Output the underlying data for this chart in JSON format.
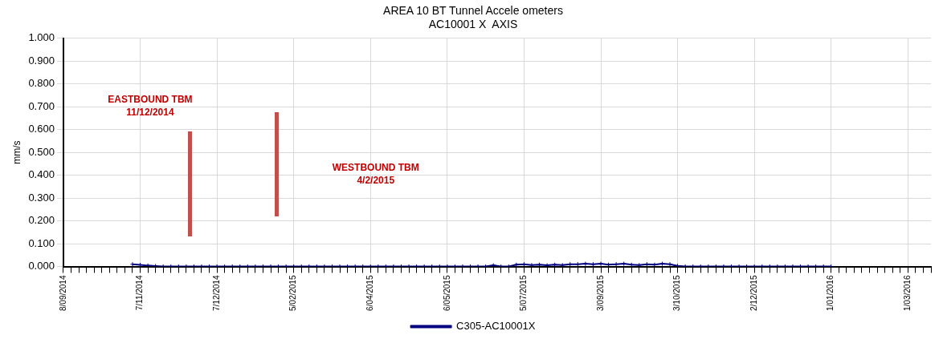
{
  "chart_data": {
    "type": "line",
    "title": "AREA 10 BT Tunnel Accele ometers",
    "subtitle": "AC10001 X  AXIS",
    "ylabel": "mm/s",
    "categories": [
      "8/09/2014",
      null,
      null,
      null,
      null,
      null,
      null,
      null,
      null,
      null,
      "7/11/2014",
      null,
      null,
      null,
      null,
      null,
      null,
      null,
      null,
      null,
      "7/12/2014",
      null,
      null,
      null,
      null,
      null,
      null,
      null,
      null,
      null,
      "5/02/2015",
      null,
      null,
      null,
      null,
      null,
      null,
      null,
      null,
      null,
      "6/04/2015",
      null,
      null,
      null,
      null,
      null,
      null,
      null,
      null,
      null,
      "6/05/2015",
      null,
      null,
      null,
      null,
      null,
      null,
      null,
      null,
      null,
      "5/07/2015",
      null,
      null,
      null,
      null,
      null,
      null,
      null,
      null,
      null,
      "3/09/2015",
      null,
      null,
      null,
      null,
      null,
      null,
      null,
      null,
      null,
      "3/10/2015",
      null,
      null,
      null,
      null,
      null,
      null,
      null,
      null,
      null,
      "2/12/2015",
      null,
      null,
      null,
      null,
      null,
      null,
      null,
      null,
      null,
      "1/01/2016",
      null,
      null,
      null,
      null,
      null,
      null,
      null,
      null,
      null,
      "1/03/2016",
      null,
      null,
      null
    ],
    "series": [
      {
        "name": "C305-AC10001X",
        "color": "#000080",
        "values": [
          null,
          null,
          null,
          null,
          null,
          null,
          null,
          null,
          null,
          0.01,
          0.007,
          0.004,
          0.002,
          0,
          0,
          0,
          0,
          0,
          0,
          0,
          0,
          0,
          0,
          0,
          0,
          0,
          0,
          0,
          0,
          0,
          0,
          0,
          0,
          0,
          0,
          0,
          0,
          0,
          0,
          0,
          0,
          0,
          0,
          0,
          0,
          0,
          0,
          0,
          0,
          0,
          0,
          0,
          0,
          0,
          0,
          0,
          0.005,
          0,
          0,
          0.008,
          0.01,
          0.006,
          0.008,
          0.005,
          0.008,
          0.006,
          0.01,
          0.01,
          0.012,
          0.01,
          0.012,
          0.008,
          0.01,
          0.012,
          0.008,
          0.006,
          0.01,
          0.008,
          0.012,
          0.01,
          0.003,
          0,
          0,
          0,
          0,
          0,
          0,
          0,
          0,
          0,
          0,
          0,
          0,
          0,
          0,
          0,
          0,
          0,
          0,
          0,
          0,
          null,
          null,
          null,
          null,
          null,
          null,
          null,
          null,
          null,
          null,
          null,
          null,
          null
        ]
      }
    ],
    "ylim": [
      0,
      1
    ],
    "yticks": [
      {
        "value": 0,
        "label": "0.000"
      },
      {
        "value": 0.1,
        "label": "0.100"
      },
      {
        "value": 0.2,
        "label": "0.200"
      },
      {
        "value": 0.3,
        "label": "0.300"
      },
      {
        "value": 0.4,
        "label": "0.400"
      },
      {
        "value": 0.5,
        "label": "0.500"
      },
      {
        "value": 0.6,
        "label": "0.600"
      },
      {
        "value": 0.7,
        "label": "0.700"
      },
      {
        "value": 0.8,
        "label": "0.800"
      },
      {
        "value": 0.9,
        "label": "0.900"
      },
      {
        "value": 1,
        "label": "1.000"
      }
    ],
    "grid": true,
    "legend": "bottom",
    "marker": "cross",
    "annotations": [
      "EASTBOUND TBM\n11/12/2014",
      "WESTBOUND TBM\n4/2/2015"
    ]
  }
}
